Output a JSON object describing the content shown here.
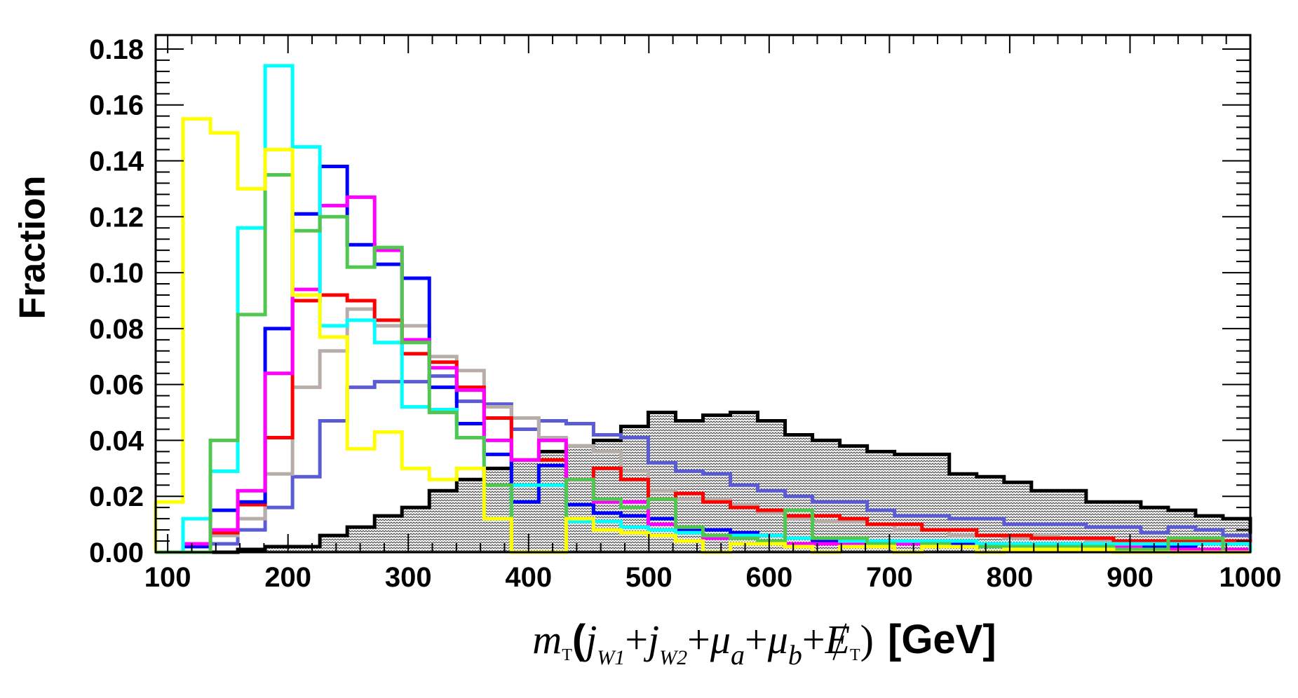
{
  "chart_data": {
    "type": "histogram-step",
    "ylabel": "Fraction",
    "xlabel_parts": {
      "m": "m",
      "T1": "T",
      "open": "(",
      "j1": "j",
      "w1": "W1",
      "plus": "+",
      "j2": "j",
      "w2": "W2",
      "mu": "μ",
      "a": "a",
      "b": "b",
      "E": "E",
      "T2": "T",
      "close": ")",
      "unit": "[GeV]"
    },
    "xlim": [
      90,
      1000
    ],
    "ylim": [
      0,
      0.185
    ],
    "xticks": [
      100,
      200,
      300,
      400,
      500,
      600,
      700,
      800,
      900,
      1000
    ],
    "yticks": [
      0.0,
      0.02,
      0.04,
      0.06,
      0.08,
      0.1,
      0.12,
      0.14,
      0.16,
      0.18
    ],
    "bin_edges": [
      90,
      112.75,
      135.5,
      158.25,
      181,
      203.75,
      226.5,
      249.25,
      272,
      294.75,
      317.5,
      340.25,
      363,
      385.75,
      408.5,
      431.25,
      454,
      476.75,
      499.5,
      522.25,
      545,
      567.75,
      590.5,
      613.25,
      636,
      658.75,
      681.5,
      704.25,
      727,
      749.75,
      772.5,
      795.25,
      818,
      840.75,
      863.5,
      886.25,
      909,
      931.75,
      954.5,
      977.25,
      1000
    ],
    "series": [
      {
        "name": "background",
        "color": "#000000",
        "fill": "hatched",
        "values": [
          0,
          0,
          0,
          0.001,
          0.002,
          0.002,
          0.006,
          0.009,
          0.013,
          0.016,
          0.022,
          0.026,
          0.03,
          0.033,
          0.036,
          0.038,
          0.04,
          0.045,
          0.05,
          0.047,
          0.049,
          0.05,
          0.047,
          0.042,
          0.04,
          0.038,
          0.036,
          0.035,
          0.035,
          0.028,
          0.027,
          0.025,
          0.022,
          0.022,
          0.018,
          0.018,
          0.016,
          0.015,
          0.013,
          0.012
        ]
      },
      {
        "name": "slateblue",
        "color": "#5b5bd6",
        "values": [
          0,
          0.002,
          0.003,
          0.008,
          0.016,
          0.027,
          0.047,
          0.059,
          0.061,
          0.061,
          0.063,
          0.054,
          0.053,
          0.044,
          0.047,
          0.046,
          0.042,
          0.041,
          0.032,
          0.029,
          0.028,
          0.024,
          0.022,
          0.02,
          0.018,
          0.018,
          0.015,
          0.013,
          0.013,
          0.012,
          0.012,
          0.01,
          0.01,
          0.01,
          0.009,
          0.009,
          0.007,
          0.009,
          0.008,
          0.006
        ]
      },
      {
        "name": "grey",
        "color": "#b8ada8",
        "values": [
          0,
          0.002,
          0.006,
          0.012,
          0.028,
          0.059,
          0.072,
          0.087,
          0.081,
          0.081,
          0.07,
          0.065,
          0.052,
          0.048,
          0.041,
          0.038,
          0.036,
          0.029,
          0.022,
          0.019,
          0.019,
          0.017,
          0.014,
          0.012,
          0.011,
          0.011,
          0.01,
          0.008,
          0.008,
          0.006,
          0.006,
          0.005,
          0.006,
          0.005,
          0.004,
          0.004,
          0.004,
          0.003,
          0.003,
          0.003
        ]
      },
      {
        "name": "red",
        "color": "#ff0000",
        "values": [
          0,
          0.003,
          0.007,
          0.017,
          0.041,
          0.09,
          0.092,
          0.09,
          0.083,
          0.071,
          0.068,
          0.059,
          0.048,
          0.033,
          0.033,
          0.026,
          0.03,
          0.026,
          0.019,
          0.021,
          0.018,
          0.016,
          0.015,
          0.013,
          0.013,
          0.012,
          0.01,
          0.01,
          0.008,
          0.008,
          0.006,
          0.006,
          0.005,
          0.005,
          0.005,
          0.004,
          0.004,
          0.004,
          0.004,
          0.004
        ]
      },
      {
        "name": "blue",
        "color": "#0000ff",
        "values": [
          0,
          0.002,
          0.015,
          0.018,
          0.08,
          0.121,
          0.138,
          0.11,
          0.103,
          0.098,
          0.059,
          0.046,
          0.035,
          0.018,
          0.031,
          0.017,
          0.014,
          0.013,
          0.012,
          0.008,
          0.008,
          0.007,
          0.006,
          0.005,
          0.004,
          0.004,
          0.004,
          0.004,
          0.003,
          0.003,
          0.003,
          0.003,
          0.002,
          0.002,
          0.002,
          0.002,
          0.002,
          0.002,
          0.001,
          0.001
        ]
      },
      {
        "name": "magenta",
        "color": "#ff00ff",
        "values": [
          0,
          0.003,
          0.008,
          0.022,
          0.064,
          0.094,
          0.124,
          0.127,
          0.108,
          0.076,
          0.066,
          0.058,
          0.04,
          0.033,
          0.04,
          0.026,
          0.018,
          0.018,
          0.01,
          0.009,
          0.005,
          0.005,
          0.004,
          0.003,
          0.003,
          0.003,
          0.003,
          0.003,
          0.003,
          0.002,
          0.002,
          0.002,
          0.002,
          0.002,
          0.002,
          0.002,
          0.001,
          0.001,
          0.001,
          0.001
        ]
      },
      {
        "name": "cyan",
        "color": "#00ffff",
        "values": [
          0,
          0.012,
          0.029,
          0.116,
          0.174,
          0.145,
          0.081,
          0.083,
          0.075,
          0.052,
          0.051,
          0.041,
          0.012,
          0.024,
          0.024,
          0.011,
          0.011,
          0.009,
          0.008,
          0.007,
          0.006,
          0.006,
          0.006,
          0.005,
          0.005,
          0.004,
          0.004,
          0.004,
          0.004,
          0.004,
          0.003,
          0.003,
          0.003,
          0.003,
          0.003,
          0.003,
          0.003,
          0.003,
          0.003,
          0.003
        ]
      },
      {
        "name": "green",
        "color": "#50c850",
        "values": [
          0,
          0,
          0.04,
          0.085,
          0.135,
          0.115,
          0.12,
          0.102,
          0.109,
          0.075,
          0.05,
          0.041,
          0.024,
          0,
          0,
          0.026,
          0.019,
          0.016,
          0.019,
          0.009,
          0.006,
          0.005,
          0.004,
          0.015,
          0.005,
          0.005,
          0.003,
          0,
          0.003,
          0.002,
          0.002,
          0.002,
          0.002,
          0.002,
          0.002,
          0.001,
          0.001,
          0.005,
          0.005,
          0
        ]
      },
      {
        "name": "yellow",
        "color": "#ffff00",
        "values": [
          0.018,
          0.155,
          0.15,
          0.13,
          0.144,
          0.092,
          0.077,
          0.037,
          0.043,
          0.03,
          0.026,
          0.03,
          0.012,
          0,
          0,
          0.012,
          0.008,
          0.007,
          0.006,
          0.004,
          0,
          0.003,
          0.003,
          0.002,
          0,
          0.002,
          0.002,
          0,
          0.002,
          0.002,
          0,
          0.001,
          0.001,
          0.001,
          0.001,
          0,
          0,
          0,
          0,
          0
        ]
      }
    ]
  }
}
